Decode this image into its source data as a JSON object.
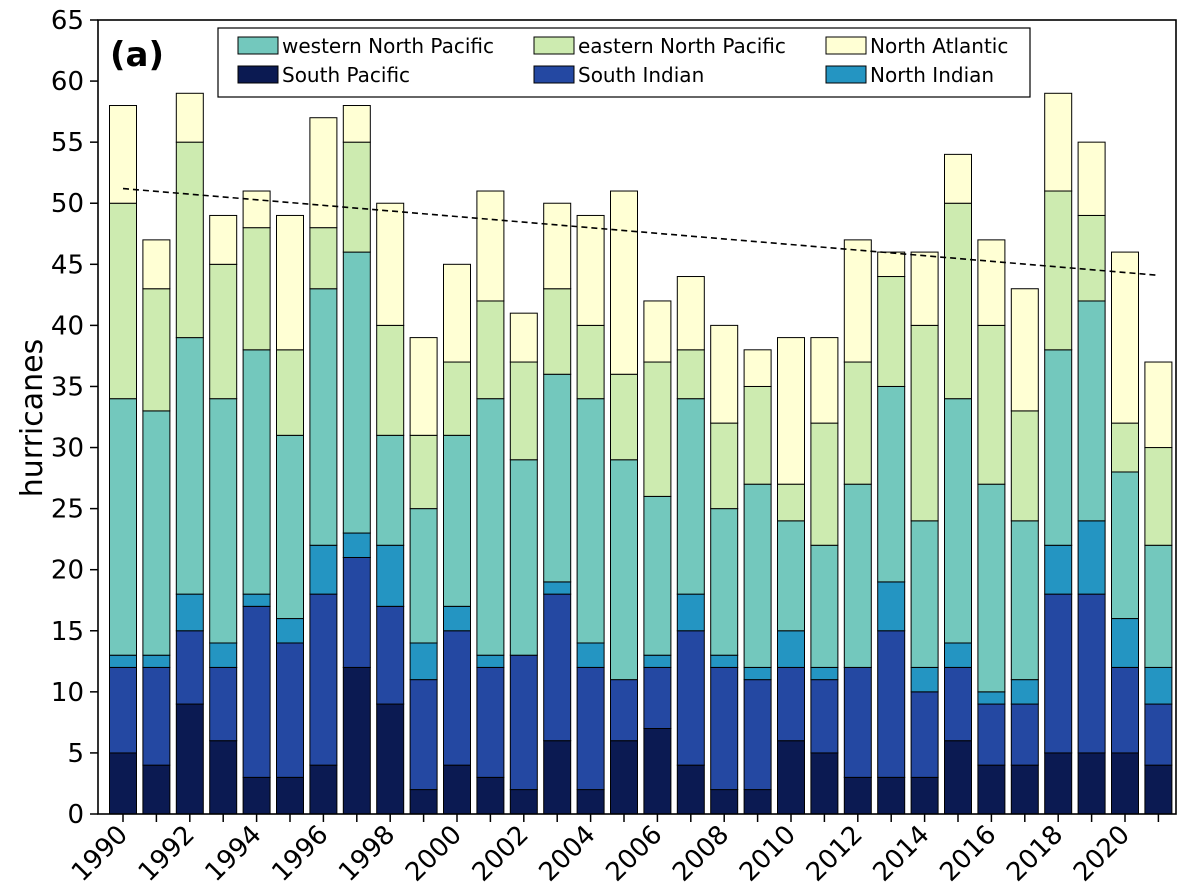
{
  "chart_data": {
    "type": "bar",
    "stacked": true,
    "panel_label": "(a)",
    "ylabel": "hurricanes",
    "xlabel": "",
    "ylim": [
      0,
      65
    ],
    "yticks": [
      0,
      5,
      10,
      15,
      20,
      25,
      30,
      35,
      40,
      45,
      50,
      55,
      60,
      65
    ],
    "xtick_labels": [
      "1990",
      "1992",
      "1994",
      "1996",
      "1998",
      "2000",
      "2002",
      "2004",
      "2006",
      "2008",
      "2010",
      "2012",
      "2014",
      "2016",
      "2018",
      "2020"
    ],
    "categories": [
      "1990",
      "1991",
      "1992",
      "1993",
      "1994",
      "1995",
      "1996",
      "1997",
      "1998",
      "1999",
      "2000",
      "2001",
      "2002",
      "2003",
      "2004",
      "2005",
      "2006",
      "2007",
      "2008",
      "2009",
      "2010",
      "2011",
      "2012",
      "2013",
      "2014",
      "2015",
      "2016",
      "2017",
      "2018",
      "2019",
      "2020",
      "2021"
    ],
    "legend_position": "top",
    "grid": false,
    "series": [
      {
        "name": "South Pacific",
        "color": "#0b1a52",
        "values": [
          5,
          4,
          9,
          6,
          3,
          3,
          4,
          12,
          9,
          2,
          4,
          3,
          2,
          6,
          2,
          6,
          7,
          4,
          2,
          2,
          6,
          5,
          3,
          3,
          3,
          6,
          4,
          4,
          5,
          5,
          5,
          4
        ]
      },
      {
        "name": "South Indian",
        "color": "#2448a2",
        "values": [
          7,
          8,
          6,
          6,
          14,
          11,
          14,
          9,
          8,
          9,
          11,
          9,
          11,
          12,
          10,
          5,
          5,
          11,
          10,
          9,
          6,
          6,
          9,
          12,
          7,
          6,
          5,
          5,
          13,
          13,
          7,
          5
        ]
      },
      {
        "name": "North Indian",
        "color": "#2495c2",
        "values": [
          1,
          1,
          3,
          2,
          1,
          2,
          4,
          2,
          5,
          3,
          2,
          1,
          0,
          1,
          2,
          0,
          1,
          3,
          1,
          1,
          3,
          1,
          0,
          4,
          2,
          2,
          1,
          2,
          4,
          6,
          4,
          3
        ]
      },
      {
        "name": "western North Pacific",
        "color": "#73c8bd",
        "values": [
          21,
          20,
          21,
          20,
          20,
          15,
          21,
          23,
          9,
          11,
          14,
          21,
          16,
          17,
          20,
          18,
          13,
          16,
          12,
          15,
          9,
          10,
          15,
          16,
          12,
          20,
          17,
          13,
          16,
          18,
          12,
          10
        ]
      },
      {
        "name": "eastern North Pacific",
        "color": "#cdebb0",
        "values": [
          16,
          10,
          16,
          11,
          10,
          7,
          5,
          9,
          9,
          6,
          6,
          8,
          8,
          7,
          6,
          7,
          11,
          4,
          7,
          8,
          3,
          10,
          10,
          9,
          16,
          16,
          13,
          9,
          13,
          7,
          4,
          8
        ]
      },
      {
        "name": "North Atlantic",
        "color": "#ffffd4",
        "values": [
          8,
          4,
          4,
          4,
          3,
          11,
          9,
          3,
          10,
          8,
          8,
          9,
          4,
          7,
          9,
          15,
          5,
          6,
          8,
          3,
          12,
          7,
          10,
          2,
          6,
          4,
          7,
          10,
          8,
          6,
          14,
          7
        ]
      }
    ],
    "legend_order": [
      "western North Pacific",
      "eastern North Pacific",
      "North Atlantic",
      "South Pacific",
      "South Indian",
      "North Indian"
    ],
    "trend_line": {
      "style": "dashed",
      "start": [
        1990,
        51.2
      ],
      "end": [
        2021,
        44.1
      ]
    }
  }
}
